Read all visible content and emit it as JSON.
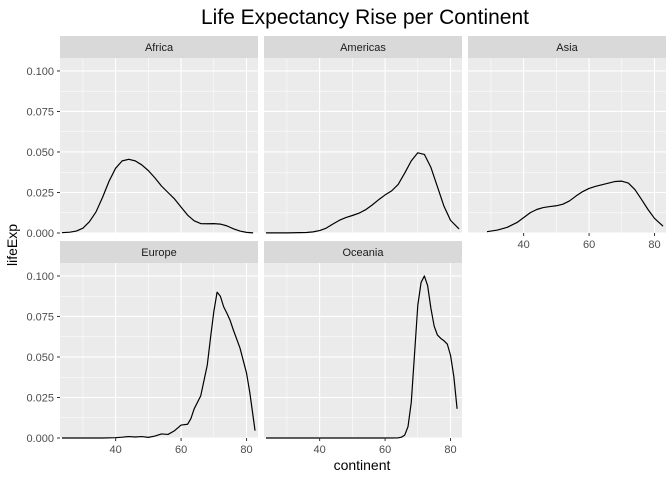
{
  "chart_data": {
    "type": "line",
    "title": "Life Expectancy Rise per Continent",
    "xlabel": "continent",
    "ylabel": "lifeExp",
    "xlim": [
      23,
      83.5
    ],
    "ylim": [
      0,
      0.108
    ],
    "x_ticks": [
      40,
      60,
      80
    ],
    "y_ticks": [
      0,
      0.025,
      0.05,
      0.075,
      0.1
    ],
    "y_tick_labels": [
      "0.000",
      "0.025",
      "0.050",
      "0.075",
      "0.100"
    ],
    "grid": true,
    "legend": "none",
    "colors": {
      "panel_bg": "#ebebeb",
      "strip_bg": "#d9d9d9",
      "grid": "#ffffff",
      "line": "#000000",
      "tick_text": "#4d4d4d"
    },
    "panels": [
      {
        "name": "Africa",
        "x": [
          23.6,
          26,
          28,
          30,
          32,
          34,
          36,
          38,
          40,
          42,
          44,
          46,
          48,
          50,
          52,
          54,
          56,
          58,
          60,
          62,
          64,
          66,
          68,
          70,
          72,
          74,
          76,
          78,
          80,
          82.0
        ],
        "y": [
          0.0002,
          0.0005,
          0.0012,
          0.003,
          0.007,
          0.013,
          0.022,
          0.032,
          0.04,
          0.0445,
          0.0455,
          0.0445,
          0.042,
          0.0385,
          0.034,
          0.029,
          0.025,
          0.021,
          0.016,
          0.011,
          0.0075,
          0.0058,
          0.0057,
          0.0058,
          0.0055,
          0.0044,
          0.0026,
          0.0012,
          0.0004,
          0.0001
        ]
      },
      {
        "name": "Americas",
        "x": [
          23.6,
          30,
          36,
          38,
          40,
          42,
          44,
          46,
          48,
          50,
          52,
          54,
          56,
          58,
          60,
          62,
          64,
          66,
          68,
          70,
          72,
          74,
          76,
          78,
          80,
          82.6
        ],
        "y": [
          0.0001,
          0.0001,
          0.0003,
          0.0007,
          0.0015,
          0.003,
          0.0055,
          0.0078,
          0.0095,
          0.0108,
          0.0122,
          0.0143,
          0.0172,
          0.0205,
          0.0235,
          0.026,
          0.03,
          0.037,
          0.0445,
          0.0495,
          0.0485,
          0.0405,
          0.0285,
          0.0165,
          0.0078,
          0.0025
        ]
      },
      {
        "name": "Asia",
        "x": [
          28.8,
          32,
          35,
          38,
          40,
          42,
          44,
          46,
          48,
          50,
          52,
          54,
          56,
          58,
          60,
          62,
          64,
          66,
          68,
          70,
          72,
          74,
          76,
          78,
          80,
          82.6
        ],
        "y": [
          0.0008,
          0.0018,
          0.0035,
          0.0065,
          0.0095,
          0.0125,
          0.0145,
          0.0157,
          0.0163,
          0.0168,
          0.0178,
          0.0198,
          0.0228,
          0.0255,
          0.0275,
          0.0288,
          0.0298,
          0.0308,
          0.0318,
          0.032,
          0.0308,
          0.0268,
          0.0208,
          0.0145,
          0.009,
          0.0042
        ]
      },
      {
        "name": "Europe",
        "x": [
          23.6,
          36,
          40,
          42,
          44,
          46,
          48,
          50,
          52,
          54,
          56,
          58,
          60,
          62,
          63,
          64,
          66,
          68,
          69,
          70,
          71,
          72,
          73,
          74,
          75,
          76,
          78,
          80,
          81,
          82.6
        ],
        "y": [
          0.0,
          0.0,
          0.0002,
          0.0005,
          0.0009,
          0.0006,
          0.0009,
          0.0004,
          0.0012,
          0.0025,
          0.0022,
          0.0045,
          0.008,
          0.0085,
          0.012,
          0.018,
          0.026,
          0.045,
          0.062,
          0.078,
          0.09,
          0.0875,
          0.081,
          0.077,
          0.0725,
          0.0665,
          0.0555,
          0.04,
          0.028,
          0.0045
        ]
      },
      {
        "name": "Oceania",
        "x": [
          23.6,
          60,
          64,
          65,
          66,
          67,
          68,
          69,
          70,
          71,
          72,
          73,
          74,
          75,
          76,
          77,
          78,
          79,
          80,
          81,
          82.0
        ],
        "y": [
          0.0,
          0.0,
          0.0001,
          0.0005,
          0.0018,
          0.007,
          0.022,
          0.052,
          0.082,
          0.096,
          0.1,
          0.094,
          0.08,
          0.069,
          0.0635,
          0.0615,
          0.06,
          0.058,
          0.051,
          0.038,
          0.018
        ]
      }
    ]
  }
}
